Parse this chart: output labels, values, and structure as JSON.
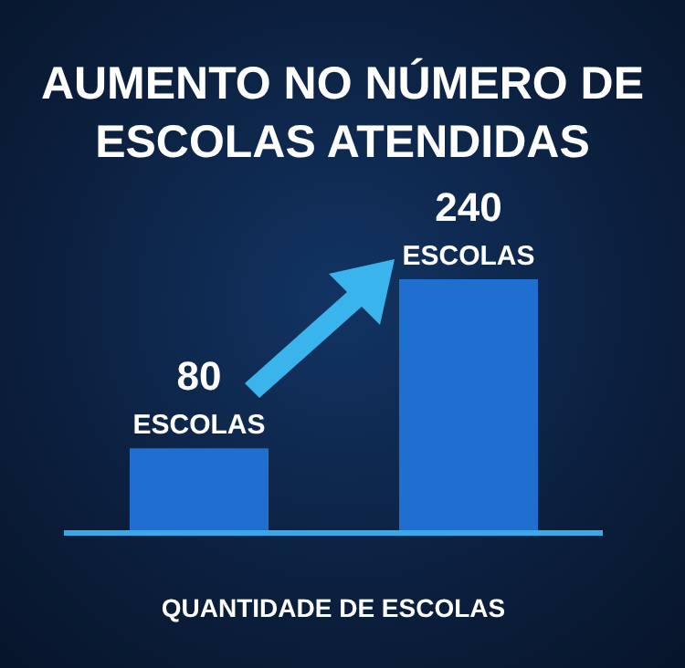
{
  "chart_data": {
    "type": "bar",
    "title": "AUMENTO NO NÚMERO DE ESCOLAS ATENDIDAS",
    "xlabel": "QUANTIDADE DE ESCOLAS",
    "categories": [
      null,
      null
    ],
    "values": [
      80,
      240
    ],
    "color": "#1f6fd1",
    "value_labels": [
      "80\nESCOLAS",
      "240\nESCOLAS"
    ],
    "grid": false,
    "legend": false
  }
}
